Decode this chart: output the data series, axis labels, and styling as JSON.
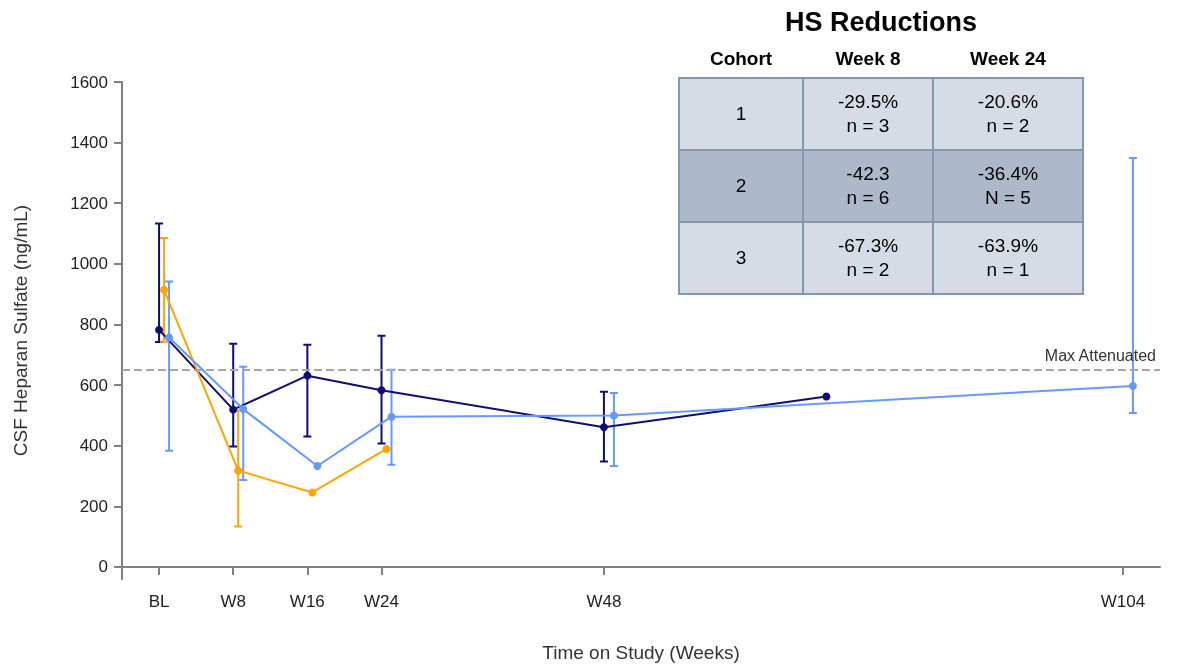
{
  "chart_data": [
    {
      "type": "line",
      "xlabel": "Time on Study (Weeks)",
      "ylabel": "CSF Heparan Sulfate (ng/mL)",
      "categories": [
        "BL",
        "W8",
        "W16",
        "W24",
        null,
        null,
        "W48",
        null,
        null,
        null,
        null,
        null,
        null,
        "W104"
      ],
      "ylim": [
        -40,
        1600
      ],
      "yticks": [
        0,
        200,
        400,
        600,
        800,
        1000,
        1200,
        1400,
        1600
      ],
      "marker": "circle",
      "line_style": "solid",
      "series": [
        {
          "color": "#0d0d73",
          "values": [
            782,
            519,
            631,
            583,
            null,
            null,
            461,
            null,
            null,
            562,
            null,
            null,
            null,
            null
          ],
          "errors": [
            [
              742,
              1133
            ],
            [
              397,
              736
            ],
            [
              430,
              733
            ],
            [
              407,
              763
            ],
            null,
            null,
            [
              348,
              578
            ],
            null,
            null,
            null,
            null,
            null,
            null,
            null
          ]
        },
        {
          "color": "#ffa500",
          "values": [
            917,
            323,
            251,
            394,
            null,
            null,
            null,
            null,
            null,
            null,
            null,
            null,
            null,
            null
          ],
          "errors": [
            [
              746,
              1087
            ],
            [
              139,
              520
            ],
            null,
            null,
            null,
            null,
            null,
            null,
            null,
            null,
            null,
            null,
            null,
            null
          ]
        },
        {
          "color": "#6699ff",
          "values": [
            760,
            525,
            338,
            500,
            null,
            null,
            504,
            null,
            null,
            null,
            null,
            null,
            null,
            601
          ],
          "errors": [
            [
              388,
              944
            ],
            [
              292,
              664
            ],
            null,
            [
              342,
              654
            ],
            null,
            null,
            [
              338,
              578
            ],
            null,
            null,
            null,
            null,
            null,
            null,
            [
              512,
              1350
            ]
          ]
        }
      ],
      "ref_lines": [
        {
          "axis": "y",
          "value": 650,
          "label": "Max Attenuated",
          "color": "#a6a6a6",
          "line_style": "dashed"
        }
      ]
    },
    {
      "type": "other",
      "title": "HS Reductions",
      "categories": [
        "Cohort",
        "Week 8",
        "Week 24"
      ],
      "cell_labels": [
        [
          "1",
          "-29.5%\nn = 3",
          "-20.6%\nn = 2"
        ],
        [
          "2",
          "-42.3\nn = 6",
          "-36.4%\nN = 5"
        ],
        [
          "3",
          "-67.3%\nn = 2",
          "-63.9%\nn = 1"
        ]
      ],
      "colors": [
        "#d6dce5",
        "#adb9ca",
        "#d6dce5"
      ]
    }
  ]
}
